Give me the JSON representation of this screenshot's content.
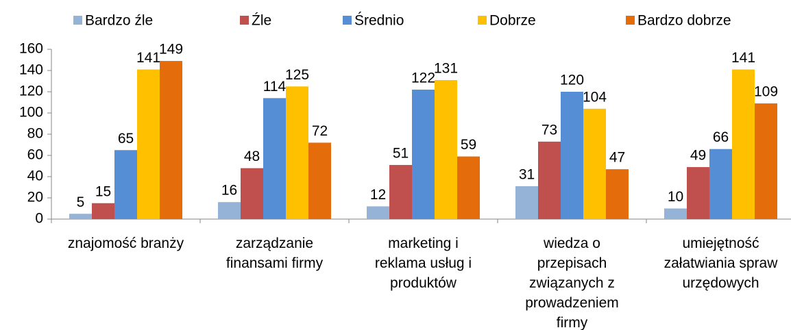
{
  "chart_data": {
    "type": "bar",
    "categories": [
      "znajomość branży",
      "zarządzanie\nfinansami firmy",
      "marketing i\nreklama usług i\nproduktów",
      "wiedza o\nprzepisach\nzwiązanych z\nprowadzeniem\nfirmy",
      "umiejętność\nzałatwiania spraw\nurzędowych"
    ],
    "series": [
      {
        "name": "Bardzo źle",
        "color": "#95b3d7",
        "values": [
          5,
          16,
          12,
          31,
          10
        ]
      },
      {
        "name": "Źle",
        "color": "#c0504d",
        "values": [
          15,
          48,
          51,
          73,
          49
        ]
      },
      {
        "name": "Średnio",
        "color": "#558ed5",
        "values": [
          65,
          114,
          122,
          120,
          66
        ]
      },
      {
        "name": "Dobrze",
        "color": "#ffc000",
        "values": [
          141,
          125,
          131,
          104,
          141
        ]
      },
      {
        "name": "Bardzo dobrze",
        "color": "#e46c0a",
        "values": [
          149,
          72,
          59,
          47,
          109
        ]
      }
    ],
    "ylim": [
      0,
      160
    ],
    "yticks": [
      0,
      20,
      40,
      60,
      80,
      100,
      120,
      140,
      160
    ],
    "legend": "top"
  }
}
